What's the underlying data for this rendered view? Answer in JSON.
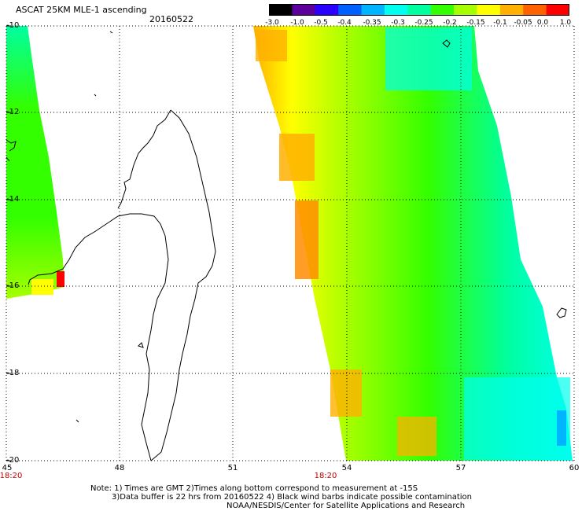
{
  "header": {
    "title": "ASCAT 25KM MLE-1 ascending",
    "date": "20160522"
  },
  "colorbar": {
    "labels": [
      "-3.0",
      "-1.0",
      "-0.5",
      "-0.4",
      "-0.35",
      "-0.3",
      "-0.25",
      "-0.2",
      "-0.15",
      "-0.1",
      "-0.05",
      "0.0",
      "1.0"
    ],
    "colors": [
      "#000000",
      "#5b009b",
      "#2a00ff",
      "#0060ff",
      "#00b4ff",
      "#00ffee",
      "#00ffa0",
      "#33ff00",
      "#a6ff00",
      "#ffff00",
      "#ffb000",
      "#ff6000",
      "#ff0000"
    ]
  },
  "axes": {
    "lat_labels": [
      "-10",
      "-12",
      "-14",
      "-16",
      "-18",
      "-20"
    ],
    "lon_labels": [
      "45",
      "48",
      "51",
      "54",
      "57",
      "60"
    ]
  },
  "times": [
    "18:20",
    "18:20"
  ],
  "notes": {
    "line1": "Note: 1) Times are GMT 2)Times along bottom correspond to measurement at -15S",
    "line2": "3)Data buffer is 22 hrs from 20160522 4) Black wind barbs indicate possible contamination",
    "line3": "NOAA/NESDIS/Center for Satellite Applications and Research"
  }
}
